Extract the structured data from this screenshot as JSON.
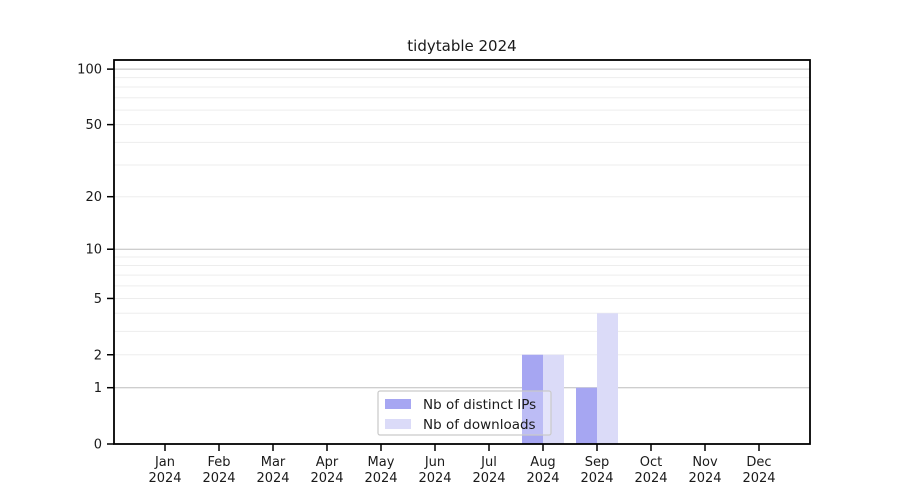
{
  "chart_data": {
    "type": "bar",
    "title": "tidytable 2024",
    "categories": [
      "Jan",
      "Feb",
      "Mar",
      "Apr",
      "May",
      "Jun",
      "Jul",
      "Aug",
      "Sep",
      "Oct",
      "Nov",
      "Dec"
    ],
    "category_year": "2024",
    "series": [
      {
        "name": "Nb of distinct IPs",
        "color": "#a6a6f2",
        "values": [
          0,
          0,
          0,
          0,
          0,
          0,
          0,
          2,
          1,
          0,
          0,
          0
        ]
      },
      {
        "name": "Nb of downloads",
        "color": "#dbdbf8",
        "values": [
          0,
          0,
          0,
          0,
          0,
          0,
          0,
          2,
          4,
          0,
          0,
          0
        ]
      }
    ],
    "xlabel": "",
    "ylabel": "",
    "y_axis": {
      "scale": "log1p",
      "tick_values": [
        0,
        1,
        2,
        5,
        10,
        20,
        50,
        100
      ],
      "ylim": [
        0,
        112
      ],
      "major_grid_values": [
        1,
        10,
        100
      ],
      "minor_grid_values": [
        2,
        3,
        4,
        5,
        6,
        7,
        8,
        9,
        20,
        30,
        40,
        50,
        60,
        70,
        80,
        90
      ]
    },
    "legend": {
      "position": "lower center",
      "entries": [
        "Nb of distinct IPs",
        "Nb of downloads"
      ]
    },
    "grid": true,
    "colors": {
      "axis_line": "#000000",
      "text": "#1a1a1a",
      "minor_grid": "#ededed",
      "major_grid": "#bdbdbd",
      "legend_border": "#c9c9c9",
      "background": "#ffffff"
    }
  }
}
